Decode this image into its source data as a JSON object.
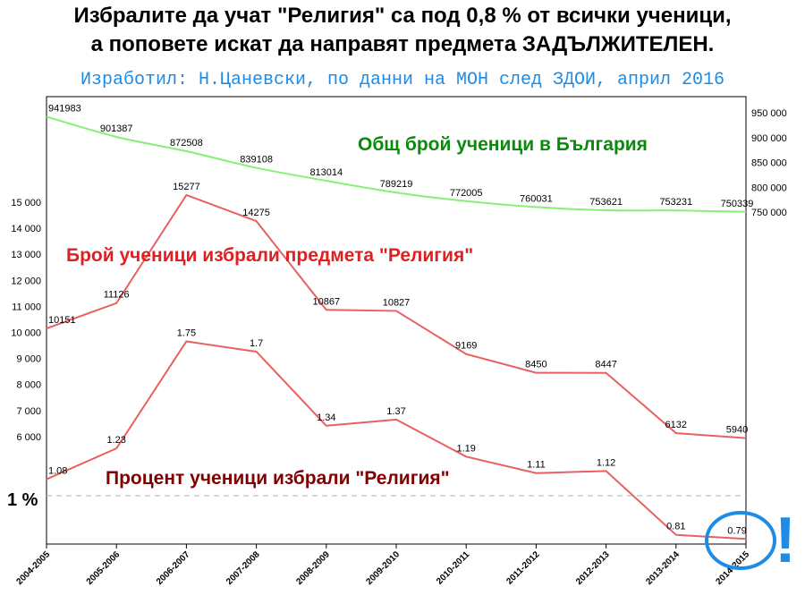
{
  "header": {
    "title_line1": "Избралите да учат \"Религия\" са под 0,8 % от всички ученици,",
    "title_line2": "а поповете искат да направят предмета ЗАДЪЛЖИТЕЛЕН.",
    "author": "Изработил: Н.Цаневски, по данни на МОН след ЗДОИ, април 2016"
  },
  "colors": {
    "total": "#88ee77",
    "total_label": "#0a8a0a",
    "religion": "#e86060",
    "religion_label": "#e02020",
    "percent": "#e86060",
    "percent_label": "#800000",
    "highlight": "#1e8ce6"
  },
  "chart_data": {
    "type": "line",
    "categories": [
      "2004-2005",
      "2005-2006",
      "2006-2007",
      "2007-2008",
      "2008-2009",
      "2009-2010",
      "2010-2011",
      "2011-2012",
      "2012-2013",
      "2013-2014",
      "2014-2015"
    ],
    "series": [
      {
        "name": "Общ брой ученици в България",
        "axis": "right",
        "values": [
          941983,
          901387,
          872508,
          839108,
          813014,
          789219,
          772005,
          760031,
          753621,
          753231,
          750339
        ],
        "labels": [
          "941983",
          "901387",
          "872508",
          "839108",
          "813014",
          "789219",
          "772005",
          "760031",
          "753621",
          "753231",
          "750339"
        ]
      },
      {
        "name": "Брой ученици избрали предмета \"Религия\"",
        "axis": "left",
        "values": [
          10151,
          11126,
          15277,
          14275,
          10867,
          10827,
          9169,
          8450,
          8447,
          6132,
          5940
        ],
        "labels": [
          "10151",
          "11126",
          "15277",
          "14275",
          "10867",
          "10827",
          "9169",
          "8450",
          "8447",
          "6132",
          "5940"
        ]
      },
      {
        "name": "Процент ученици избрали \"Религия\"",
        "axis": "percent",
        "values": [
          1.08,
          1.23,
          1.75,
          1.7,
          1.34,
          1.37,
          1.19,
          1.11,
          1.12,
          0.81,
          0.79
        ],
        "labels": [
          "1.08",
          "1.23",
          "1.75",
          "1.7",
          "1.34",
          "1.37",
          "1.19",
          "1.11",
          "1.12",
          "0.81",
          "0.79"
        ]
      }
    ],
    "y_left": {
      "range": [
        5000,
        15500
      ],
      "ticks": [
        "15 000",
        "14 000",
        "13 000",
        "12 000",
        "11 000",
        "10 000",
        "9 000",
        "8 000",
        "7 000",
        "6 000"
      ],
      "tick_values": [
        15000,
        14000,
        13000,
        12000,
        11000,
        10000,
        9000,
        8000,
        7000,
        6000
      ]
    },
    "y_right": {
      "range": [
        750000,
        950000
      ],
      "ticks": [
        "950 000",
        "900 000",
        "850 000",
        "800 000",
        "750 000"
      ],
      "tick_values": [
        950000,
        900000,
        850000,
        800000,
        750000
      ]
    },
    "percent_axis": {
      "reference_value": 1,
      "reference_label": "1 %",
      "range": [
        0.75,
        1.8
      ]
    },
    "annotations": {
      "exclamation": "!"
    },
    "grid": false
  }
}
